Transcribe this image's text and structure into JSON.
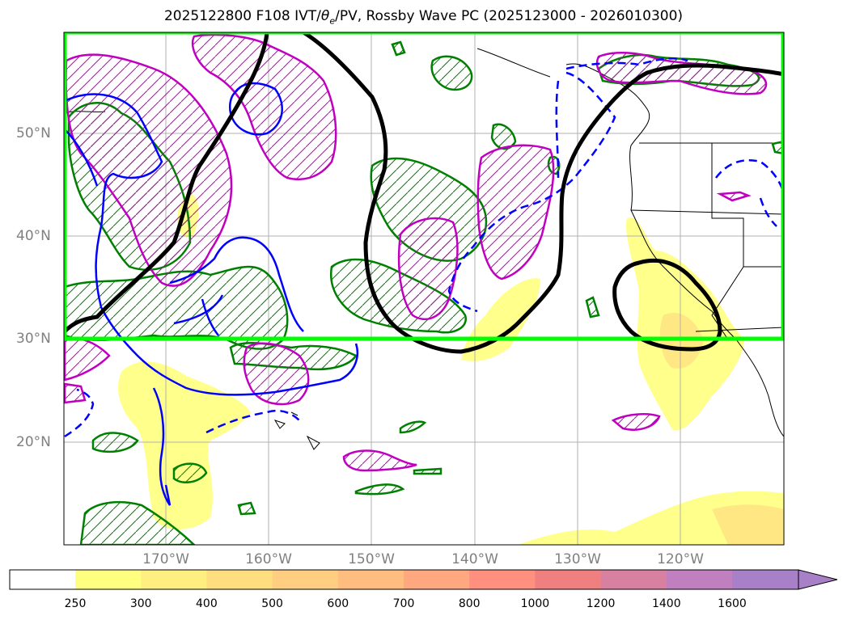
{
  "title": "2025122800 F108 IVT/θe/PV, Rossby Wave PC (2025123000 - 2026010300)",
  "title_main": "2025122800 F108 IVT/",
  "title_theta": "θ",
  "title_sub": "e",
  "title_rest": "/PV, Rossby Wave PC (2025123000 - 2026010300)",
  "lat_labels": [
    "50°N",
    "40°N",
    "30°N",
    "20°N"
  ],
  "lon_labels": [
    "170°W",
    "160°W",
    "150°W",
    "140°W",
    "130°W",
    "120°W"
  ],
  "colorbar": {
    "ticks": [
      "250",
      "300",
      "400",
      "500",
      "600",
      "700",
      "800",
      "1000",
      "1200",
      "1400",
      "1600"
    ],
    "colors": [
      "#ffff80",
      "#ffee80",
      "#ffde80",
      "#ffce80",
      "#ffbe80",
      "#ffa880",
      "#ff9080",
      "#f08080",
      "#d880a0",
      "#c080c0",
      "#a880c8"
    ]
  },
  "colors": {
    "box": "#00ff00",
    "green_contour": "#008000",
    "magenta_contour": "#c000c0",
    "blue_contour": "#0000ff",
    "black_contour": "#000000",
    "ivt_fill": "#ffff80"
  }
}
